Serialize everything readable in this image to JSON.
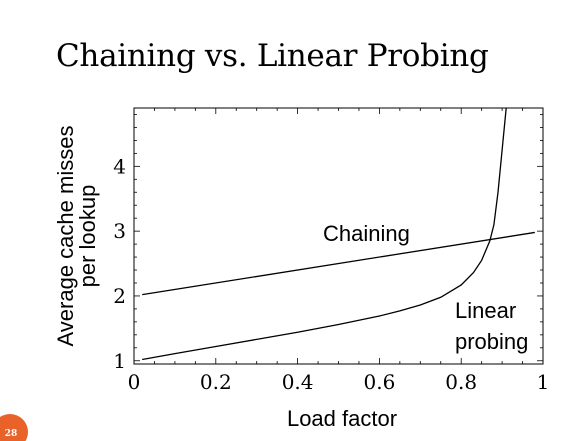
{
  "slide": {
    "title": "Chaining vs. Linear Probing",
    "page_number": "28",
    "badge_color": "#e8622a"
  },
  "chart_data": {
    "type": "line",
    "title": "",
    "xlabel": "Load factor",
    "ylabel": "Average cache misses per lookup",
    "ylabel_lines": [
      "Average cache misses",
      "per lookup"
    ],
    "xlim": [
      0,
      1
    ],
    "ylim": [
      0.95,
      4.9
    ],
    "x_ticks": [
      0,
      0.2,
      0.4,
      0.6,
      0.8,
      1
    ],
    "x_tick_labels": [
      "0",
      "0.2",
      "0.4",
      "0.6",
      "0.8",
      "1"
    ],
    "y_ticks": [
      1,
      2,
      3,
      4
    ],
    "y_tick_labels": [
      "1",
      "2",
      "3",
      "4"
    ],
    "grid": false,
    "series": [
      {
        "name": "Chaining",
        "label_lines": [
          "Chaining"
        ],
        "x": [
          0.02,
          0.98
        ],
        "y": [
          2.02,
          2.98
        ]
      },
      {
        "name": "Linear probing",
        "label_lines": [
          "Linear",
          "probing"
        ],
        "x": [
          0.02,
          0.1,
          0.2,
          0.3,
          0.4,
          0.5,
          0.6,
          0.65,
          0.7,
          0.75,
          0.8,
          0.83,
          0.85,
          0.87,
          0.88,
          0.89,
          0.9,
          0.91
        ],
        "y": [
          1.02,
          1.11,
          1.22,
          1.33,
          1.44,
          1.56,
          1.69,
          1.77,
          1.86,
          1.98,
          2.17,
          2.36,
          2.55,
          2.85,
          3.1,
          3.6,
          4.25,
          4.9
        ]
      }
    ]
  }
}
